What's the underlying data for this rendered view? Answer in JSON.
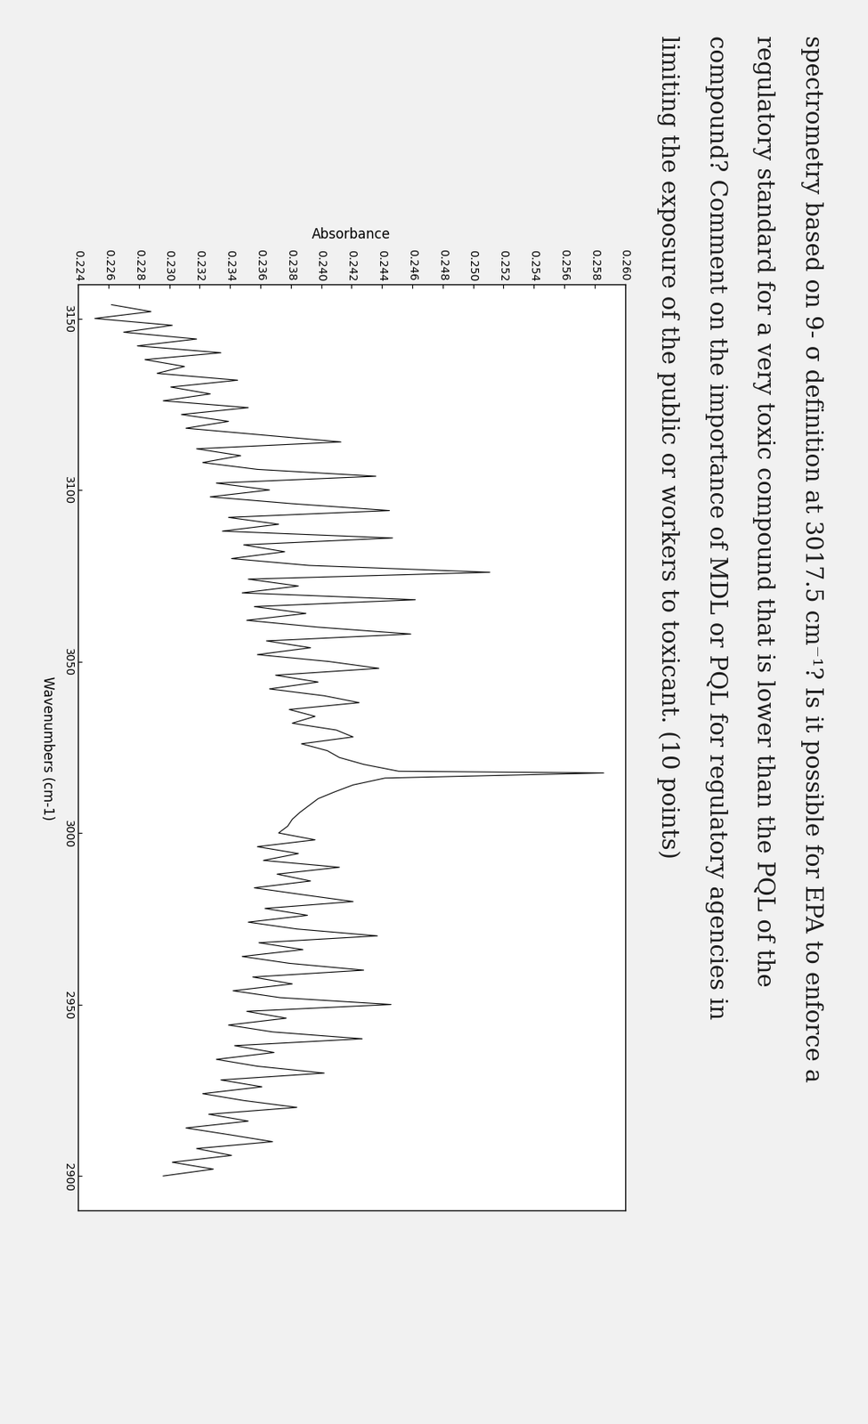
{
  "document": {
    "text_lines": [
      "spectrometry based on 9- σ definition at 3017.5 cm⁻¹? Is it possible for EPA to enforce a",
      "regulatory standard for a very toxic compound that is lower than the PQL of the",
      "compound? Comment on the importance of MDL or PQL for regulatory agencies in",
      "limiting the exposure of the public or workers to toxicant. (10 points)"
    ]
  },
  "chart_data": {
    "type": "line",
    "x_label": "Wavenumbers (cm-1)",
    "y_label": "Absorbance",
    "color": "#000000",
    "x": [
      3154,
      3152,
      3150,
      3148,
      3146,
      3144,
      3142,
      3140,
      3138,
      3136,
      3134,
      3132,
      3130,
      3128,
      3126,
      3124,
      3122,
      3120,
      3118,
      3116,
      3114,
      3112,
      3110,
      3108,
      3106,
      3104,
      3102,
      3100,
      3098,
      3096,
      3094,
      3092,
      3090,
      3088,
      3086,
      3084,
      3082,
      3080,
      3078,
      3076,
      3074,
      3072,
      3070,
      3068,
      3066,
      3064,
      3062,
      3060,
      3058,
      3056,
      3054,
      3052,
      3050,
      3048,
      3046,
      3044,
      3042,
      3040,
      3038,
      3036,
      3034,
      3032,
      3030,
      3028,
      3026,
      3024,
      3022,
      3020,
      3018,
      3017.5,
      3016,
      3014,
      3012,
      3010,
      3008,
      3006,
      3004,
      3002,
      3000,
      2998,
      2996,
      2994,
      2992,
      2990,
      2988,
      2986,
      2984,
      2982,
      2980,
      2978,
      2976,
      2974,
      2972,
      2970,
      2968,
      2966,
      2964,
      2962,
      2960,
      2958,
      2956,
      2954,
      2952,
      2950,
      2948,
      2946,
      2944,
      2942,
      2940,
      2938,
      2936,
      2934,
      2932,
      2930,
      2928,
      2926,
      2924,
      2922,
      2920,
      2918,
      2916,
      2914,
      2912,
      2910,
      2908,
      2906,
      2904,
      2902,
      2900
    ],
    "values": [
      0.2262,
      0.2288,
      0.2251,
      0.2302,
      0.227,
      0.2318,
      0.2279,
      0.2334,
      0.2284,
      0.231,
      0.2292,
      0.2345,
      0.2301,
      0.2327,
      0.2296,
      0.2352,
      0.2308,
      0.2339,
      0.2311,
      0.2362,
      0.2413,
      0.2318,
      0.2347,
      0.2322,
      0.2358,
      0.2436,
      0.2331,
      0.2366,
      0.2327,
      0.2381,
      0.2445,
      0.2339,
      0.2372,
      0.2335,
      0.2447,
      0.2349,
      0.2376,
      0.2341,
      0.2392,
      0.2511,
      0.2352,
      0.2385,
      0.2348,
      0.2462,
      0.2356,
      0.239,
      0.2351,
      0.2398,
      0.2459,
      0.2364,
      0.2393,
      0.2358,
      0.2405,
      0.2438,
      0.237,
      0.2398,
      0.2366,
      0.2402,
      0.2425,
      0.2379,
      0.2396,
      0.2381,
      0.241,
      0.2421,
      0.2387,
      0.2404,
      0.2412,
      0.2428,
      0.2451,
      0.2586,
      0.2442,
      0.2421,
      0.2409,
      0.2398,
      0.2392,
      0.2386,
      0.2381,
      0.2378,
      0.2372,
      0.2396,
      0.2358,
      0.2385,
      0.2362,
      0.2412,
      0.2371,
      0.2393,
      0.2356,
      0.2388,
      0.2421,
      0.2363,
      0.2391,
      0.2352,
      0.2384,
      0.2437,
      0.2359,
      0.2388,
      0.2348,
      0.2379,
      0.2428,
      0.2355,
      0.2381,
      0.2342,
      0.2373,
      0.2446,
      0.2351,
      0.2377,
      0.2339,
      0.2368,
      0.2427,
      0.2343,
      0.2369,
      0.2331,
      0.2358,
      0.2402,
      0.2334,
      0.2361,
      0.2322,
      0.2349,
      0.2384,
      0.2326,
      0.2352,
      0.2311,
      0.234,
      0.2368,
      0.2318,
      0.2341,
      0.2302,
      0.2329,
      0.2296
    ],
    "xlim": [
      3160,
      2890
    ],
    "xticks": [
      3150,
      3100,
      3050,
      3000,
      2950,
      2900
    ],
    "ylim": [
      0.224,
      0.26
    ],
    "yticks": [
      {
        "value": 0.224,
        "label": "0.224"
      },
      {
        "value": 0.226,
        "label": "0.226"
      },
      {
        "value": 0.228,
        "label": "0.228"
      },
      {
        "value": 0.23,
        "label": "0.230"
      },
      {
        "value": 0.232,
        "label": "0.232"
      },
      {
        "value": 0.234,
        "label": "0.234"
      },
      {
        "value": 0.236,
        "label": "0.236"
      },
      {
        "value": 0.238,
        "label": "0.238"
      },
      {
        "value": 0.24,
        "label": "0.240"
      },
      {
        "value": 0.242,
        "label": "0.242"
      },
      {
        "value": 0.244,
        "label": "0.244"
      },
      {
        "value": 0.246,
        "label": "0.246"
      },
      {
        "value": 0.248,
        "label": "0.248"
      },
      {
        "value": 0.25,
        "label": "0.250"
      },
      {
        "value": 0.252,
        "label": "0.252"
      },
      {
        "value": 0.254,
        "label": "0.254"
      },
      {
        "value": 0.256,
        "label": "0.256"
      },
      {
        "value": 0.258,
        "label": "0.258"
      },
      {
        "value": 0.26,
        "label": "0.260"
      }
    ],
    "grid": false
  }
}
